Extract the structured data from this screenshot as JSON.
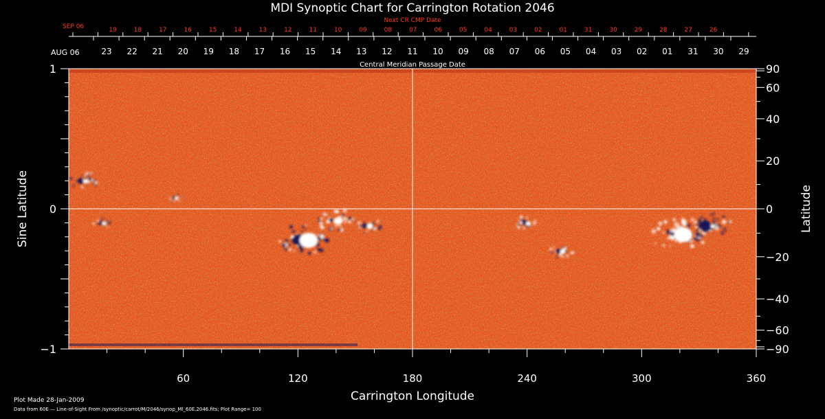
{
  "chart_data": {
    "type": "heatmap",
    "title": "MDI Synoptic Chart for Carrington Rotation 2046",
    "xlabel": "Carrington Longitude",
    "ylabel_left": "Sine Latitude",
    "ylabel_right": "Latitude",
    "xlim": [
      0,
      360
    ],
    "ylim": [
      -1,
      1
    ],
    "x_ticks": [
      "60",
      "120",
      "180",
      "240",
      "300",
      "360"
    ],
    "y_left_ticks": [
      {
        "value": 1,
        "label": "1"
      },
      {
        "value": 0,
        "label": "0"
      },
      {
        "value": -1,
        "label": "−1"
      }
    ],
    "y_right_ticks": [
      {
        "value": 90,
        "label": "90"
      },
      {
        "value": 60,
        "label": "60"
      },
      {
        "value": 40,
        "label": "40"
      },
      {
        "value": 20,
        "label": "20"
      },
      {
        "value": 0,
        "label": "0"
      },
      {
        "value": -20,
        "label": "−20"
      },
      {
        "value": -40,
        "label": "−40"
      },
      {
        "value": -60,
        "label": "−60"
      },
      {
        "value": -90,
        "label": "−90"
      }
    ],
    "top_axis_red": {
      "label": "Next CR CMP Date",
      "month_label": "SEP 06",
      "dates": [
        "19",
        "18",
        "17",
        "16",
        "15",
        "14",
        "13",
        "12",
        "11",
        "10",
        "09",
        "08",
        "07",
        "06",
        "05",
        "04",
        "03",
        "02",
        "01",
        "31",
        "30",
        "29",
        "28",
        "27",
        "26"
      ]
    },
    "top_axis_white": {
      "label": "Central Meridian Passage Date",
      "month_label": "AUG 06",
      "dates": [
        "23",
        "22",
        "21",
        "20",
        "19",
        "18",
        "17",
        "16",
        "15",
        "14",
        "13",
        "12",
        "11",
        "10",
        "09",
        "08",
        "07",
        "06",
        "05",
        "04",
        "03",
        "02",
        "01",
        "31",
        "30",
        "29"
      ]
    },
    "active_regions": [
      {
        "lon": 8,
        "lat": 0.2,
        "pos": 0.35,
        "neg": 0.6,
        "size": 6
      },
      {
        "lon": 18,
        "lat": -0.1,
        "pos": 0.45,
        "neg": 0.45,
        "size": 4
      },
      {
        "lon": 56,
        "lat": 0.08,
        "pos": 0.5,
        "neg": 0.5,
        "size": 3
      },
      {
        "lon": 124,
        "lat": -0.22,
        "pos": 1.0,
        "neg": 0.8,
        "size": 11
      },
      {
        "lon": 140,
        "lat": -0.08,
        "pos": 0.6,
        "neg": 0.3,
        "size": 8
      },
      {
        "lon": 157,
        "lat": -0.12,
        "pos": 0.6,
        "neg": 0.6,
        "size": 5
      },
      {
        "lon": 240,
        "lat": -0.1,
        "pos": 0.45,
        "neg": 0.45,
        "size": 5
      },
      {
        "lon": 258,
        "lat": -0.3,
        "pos": 0.5,
        "neg": 0.5,
        "size": 5
      },
      {
        "lon": 320,
        "lat": -0.18,
        "pos": 0.9,
        "neg": 0.2,
        "size": 12
      },
      {
        "lon": 336,
        "lat": -0.12,
        "pos": 0.2,
        "neg": 0.95,
        "size": 9
      }
    ],
    "crosshair": {
      "lon": 180,
      "lat": 0
    },
    "colors": {
      "background": "#000000",
      "field_base": "#e8551e",
      "field_dark": "#b23010",
      "field_light": "#f7823a",
      "positive": "#ffffff",
      "negative": "#14145a",
      "red_axis": "#ff3a18",
      "axis": "#ffffff"
    }
  },
  "footer": {
    "line1": "Plot Made 28-Jan-2009",
    "line2": "Data from 60E — Line-of-Sight From /synoptic/carrot/M/2046/synop_Ml_60E.2046.fits; Plot Range=  100"
  }
}
